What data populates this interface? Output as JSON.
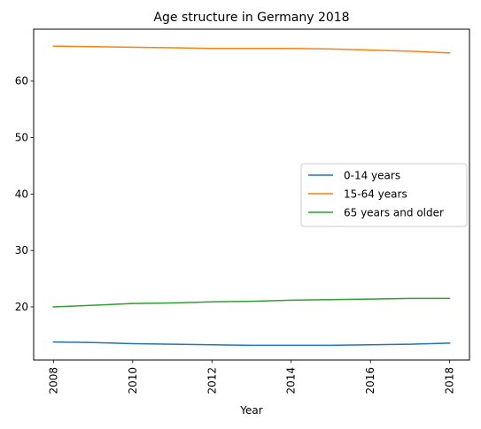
{
  "chart_data": {
    "type": "line",
    "title": "Age structure in Germany 2018",
    "xlabel": "Year",
    "ylabel": "",
    "x": [
      2008,
      2009,
      2010,
      2011,
      2012,
      2013,
      2014,
      2015,
      2016,
      2017,
      2018
    ],
    "xticks": [
      2008,
      2010,
      2012,
      2014,
      2016,
      2018
    ],
    "yticks": [
      20,
      30,
      40,
      50,
      60
    ],
    "xlim": [
      2007.5,
      2018.5
    ],
    "ylim": [
      10.6,
      69.2
    ],
    "grid": false,
    "legend_position": "center-right",
    "series": [
      {
        "name": "0-14 years",
        "color": "#1f77b4",
        "values": [
          13.8,
          13.7,
          13.5,
          13.4,
          13.3,
          13.2,
          13.2,
          13.2,
          13.3,
          13.4,
          13.6
        ]
      },
      {
        "name": "15-64 years",
        "color": "#ff7f0e",
        "values": [
          66.2,
          66.1,
          66.0,
          65.9,
          65.8,
          65.8,
          65.8,
          65.7,
          65.5,
          65.3,
          65.0
        ]
      },
      {
        "name": "65 years and older",
        "color": "#2ca02c",
        "values": [
          20.0,
          20.3,
          20.6,
          20.7,
          20.9,
          21.0,
          21.2,
          21.3,
          21.4,
          21.5,
          21.5
        ]
      }
    ]
  }
}
